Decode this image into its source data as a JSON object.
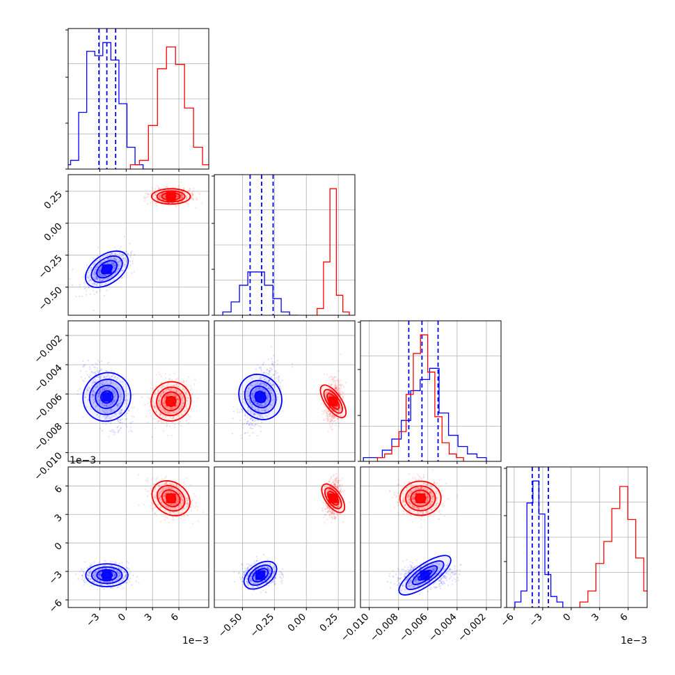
{
  "chart_data": {
    "type": "corner",
    "colors": {
      "model_a": "#0000ff",
      "model_b": "#ff0000",
      "grid": "#b0b0b0"
    },
    "grid": true,
    "parameters": [
      {
        "range": [
          -0.0066,
          0.0094
        ],
        "ticks": [
          -0.003,
          0,
          0.003,
          0.006
        ],
        "tick_labels": [
          "−3",
          "0",
          "3",
          "6"
        ],
        "offset": "1e−3"
      },
      {
        "range": [
          -0.72,
          0.38
        ],
        "ticks": [
          -0.5,
          -0.25,
          0,
          0.25
        ],
        "tick_labels": [
          "−0.50",
          "−0.25",
          "0.00",
          "0.25"
        ],
        "offset": ""
      },
      {
        "range": [
          -0.0106,
          -0.001
        ],
        "ticks": [
          -0.01,
          -0.008,
          -0.006,
          -0.004,
          -0.002
        ],
        "tick_labels": [
          "−0.010",
          "−0.008",
          "−0.006",
          "−0.004",
          "−0.002"
        ],
        "offset": ""
      },
      {
        "range": [
          -0.0068,
          0.008
        ],
        "ticks": [
          -0.006,
          -0.003,
          0,
          0.003,
          0.006
        ],
        "tick_labels": [
          "−6",
          "−3",
          "0",
          "3",
          "6"
        ],
        "offset": "1e−3"
      }
    ],
    "series": [
      {
        "color": "#0000ff",
        "means": [
          -0.0022,
          -0.36,
          -0.0062,
          -0.0034
        ],
        "std": [
          0.0012,
          0.07,
          0.001,
          0.0006
        ],
        "quantiles": [
          [
            -0.0031,
            -0.0022,
            -0.0012
          ],
          [
            -0.44,
            -0.35,
            -0.26
          ],
          [
            -0.0073,
            -0.0064,
            -0.0053
          ],
          [
            -0.0041,
            -0.0034,
            -0.0024
          ]
        ],
        "hist": [
          [
            1,
            2,
            13,
            27,
            26,
            29,
            25,
            15,
            5,
            1,
            0
          ],
          [
            1,
            4,
            9,
            13,
            13,
            9,
            5,
            1,
            0
          ],
          [
            1,
            1,
            3,
            6,
            11,
            19,
            22,
            25,
            13,
            7,
            4,
            2,
            1
          ],
          [
            1,
            3,
            19,
            23,
            17,
            6,
            2,
            1
          ]
        ]
      },
      {
        "color": "#ff0000",
        "means": [
          0.0051,
          0.21,
          -0.0065,
          0.0047
        ],
        "std": [
          0.0011,
          0.03,
          0.0007,
          0.0009
        ],
        "hist": [
          [
            1,
            2,
            10,
            23,
            28,
            24,
            14,
            5,
            1
          ],
          [
            2,
            16,
            38,
            6,
            1
          ],
          [
            1,
            2,
            4,
            8,
            18,
            29,
            34,
            24,
            12,
            5,
            2,
            1
          ],
          [
            1,
            3,
            8,
            12,
            18,
            22,
            16,
            9,
            3
          ]
        ]
      }
    ]
  }
}
